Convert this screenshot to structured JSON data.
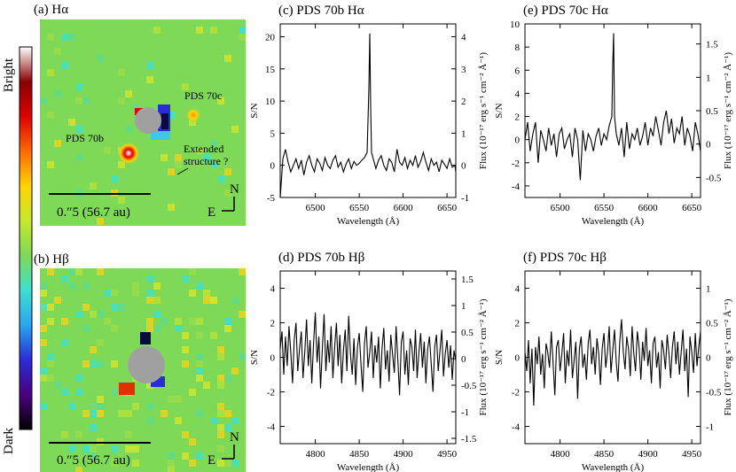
{
  "colorbar": {
    "top_label": "Bright",
    "bottom_label": "Dark",
    "stops": [
      "#000000",
      "#4b0082",
      "#2b2bd8",
      "#2aa6f0",
      "#3de0d0",
      "#7ed957",
      "#c6e82a",
      "#ffd400",
      "#ff6a00",
      "#e00000",
      "#8c0000",
      "#ffffff"
    ]
  },
  "images": [
    {
      "title": "(a) Hα",
      "labels": {
        "p70b": "PDS 70b",
        "p70c": "PDS 70c",
        "ext1": "Extended",
        "ext2": "structure ?"
      },
      "scale": "0.″5 (56.7 au)",
      "n": "N",
      "e": "E",
      "background": "#7ed957"
    },
    {
      "title": "(b) Hβ",
      "labels": {},
      "scale": "0.″5 (56.7 au)",
      "n": "N",
      "e": "E",
      "background": "#7ed957"
    }
  ],
  "chart_data": [
    {
      "type": "line",
      "title": "(c) PDS 70b Hα",
      "xlabel": "Wavelength (Å)",
      "ylabel": "S/N",
      "y2label": "Flux (10⁻¹⁷ erg s⁻¹ cm⁻² Å⁻¹)",
      "xlim": [
        6460,
        6660
      ],
      "ylim": [
        -5,
        22
      ],
      "y2lim": [
        -1,
        4.4
      ],
      "xticks": [
        6500,
        6550,
        6600,
        6650
      ],
      "yticks": [
        -5,
        0,
        5,
        10,
        15,
        20
      ],
      "y2ticks": [
        -1,
        0,
        1,
        2,
        3,
        4
      ],
      "series": [
        {
          "x": [
            6460,
            6463,
            6466,
            6469,
            6472,
            6475,
            6478,
            6481,
            6484,
            6487,
            6490,
            6493,
            6496,
            6499,
            6502,
            6505,
            6508,
            6511,
            6514,
            6517,
            6520,
            6523,
            6526,
            6529,
            6532,
            6535,
            6538,
            6541,
            6544,
            6547,
            6550,
            6553,
            6556,
            6559,
            6561,
            6562,
            6563,
            6564,
            6566,
            6569,
            6572,
            6575,
            6578,
            6581,
            6584,
            6587,
            6590,
            6593,
            6596,
            6599,
            6602,
            6605,
            6608,
            6611,
            6614,
            6617,
            6620,
            6623,
            6626,
            6629,
            6632,
            6635,
            6638,
            6641,
            6644,
            6647,
            6650,
            6653,
            6656,
            6659,
            6660
          ],
          "y": [
            -5,
            1,
            2.5,
            0.5,
            -1,
            0,
            1,
            -0.5,
            0.8,
            -1.5,
            0.5,
            1.5,
            0,
            -1,
            1,
            0.3,
            -0.8,
            1.2,
            0,
            -0.5,
            0.8,
            1.5,
            -0.3,
            0.5,
            -1,
            0.2,
            1,
            -0.5,
            0.6,
            0,
            0.3,
            0.8,
            1.2,
            2,
            12,
            20.5,
            9,
            2,
            1,
            -0.5,
            0.8,
            1.5,
            0,
            -0.8,
            1,
            0.5,
            -1,
            2.5,
            0.5,
            0,
            1.2,
            -0.5,
            0.8,
            0,
            1.5,
            -0.3,
            0.6,
            2,
            0.5,
            -0.8,
            1,
            0,
            0.5,
            -1,
            0.8,
            0.2,
            -0.5,
            1,
            -0.3,
            0,
            -1
          ]
        }
      ]
    },
    {
      "type": "line",
      "title": "(e) PDS 70c Hα",
      "xlabel": "Wavelength (Å)",
      "ylabel": "S/N",
      "y2label": "Flux (10⁻¹⁷ erg s⁻¹ cm⁻² Å⁻¹)",
      "xlim": [
        6460,
        6660
      ],
      "ylim": [
        -5,
        10
      ],
      "y2lim": [
        -0.8,
        1.8
      ],
      "xticks": [
        6500,
        6550,
        6600,
        6650
      ],
      "yticks": [
        -4,
        -2,
        0,
        2,
        4,
        6,
        8,
        10
      ],
      "y2ticks": [
        -0.5,
        0,
        0.5,
        1,
        1.5
      ],
      "series": [
        {
          "x": [
            6460,
            6463,
            6466,
            6469,
            6472,
            6475,
            6478,
            6481,
            6484,
            6487,
            6490,
            6493,
            6496,
            6499,
            6502,
            6505,
            6508,
            6511,
            6514,
            6517,
            6520,
            6523,
            6526,
            6529,
            6532,
            6535,
            6538,
            6541,
            6544,
            6547,
            6550,
            6553,
            6556,
            6559,
            6560,
            6561,
            6562,
            6564,
            6567,
            6570,
            6573,
            6576,
            6579,
            6582,
            6585,
            6588,
            6591,
            6594,
            6597,
            6600,
            6603,
            6606,
            6609,
            6612,
            6615,
            6618,
            6621,
            6624,
            6627,
            6630,
            6633,
            6636,
            6639,
            6642,
            6645,
            6648,
            6651,
            6654,
            6657,
            6660
          ],
          "y": [
            0,
            1.5,
            -1,
            0.5,
            1.5,
            -2,
            0.8,
            0,
            -1,
            1,
            -0.5,
            0.5,
            -1.5,
            0.5,
            1,
            -0.8,
            0,
            0.5,
            -1.5,
            1,
            0,
            -3.5,
            0.8,
            -1,
            0.5,
            0,
            -1,
            0.3,
            1,
            -0.5,
            0.5,
            0,
            1.2,
            2,
            6.5,
            9.2,
            2,
            0.5,
            -0.5,
            1,
            -1.5,
            1.5,
            -0.8,
            0.5,
            0,
            1,
            -0.5,
            0.3,
            1.5,
            -0.5,
            1,
            0.3,
            2,
            0.8,
            -0.5,
            1.5,
            2.5,
            0.5,
            1.8,
            -0.3,
            1,
            0.5,
            2,
            -0.5,
            1,
            0.3,
            -1,
            1.5,
            0.5,
            -1
          ]
        }
      ]
    },
    {
      "type": "line",
      "title": "(d) PDS 70b Hβ",
      "xlabel": "Wavelength (Å)",
      "ylabel": "S/N",
      "y2label": "Flux (10⁻¹⁷ erg s⁻¹ cm⁻² Å⁻¹)",
      "xlim": [
        4760,
        4960
      ],
      "ylim": [
        -5,
        5
      ],
      "y2lim": [
        -1.6,
        1.65
      ],
      "xticks": [
        4800,
        4850,
        4900,
        4950
      ],
      "yticks": [
        -4,
        -2,
        0,
        2,
        4
      ],
      "y2ticks": [
        -1.5,
        -1,
        -0.5,
        0,
        0.5,
        1,
        1.5
      ],
      "series": [
        {
          "x": [
            4760,
            4762,
            4764,
            4766,
            4768,
            4770,
            4772,
            4774,
            4776,
            4778,
            4780,
            4782,
            4784,
            4786,
            4788,
            4790,
            4792,
            4794,
            4796,
            4798,
            4800,
            4802,
            4804,
            4806,
            4808,
            4810,
            4812,
            4814,
            4816,
            4818,
            4820,
            4822,
            4824,
            4826,
            4828,
            4830,
            4832,
            4834,
            4836,
            4838,
            4840,
            4842,
            4844,
            4846,
            4848,
            4850,
            4852,
            4854,
            4856,
            4858,
            4860,
            4862,
            4864,
            4866,
            4868,
            4870,
            4872,
            4874,
            4876,
            4878,
            4880,
            4882,
            4884,
            4886,
            4888,
            4890,
            4892,
            4894,
            4896,
            4898,
            4900,
            4902,
            4904,
            4906,
            4908,
            4910,
            4912,
            4914,
            4916,
            4918,
            4920,
            4922,
            4924,
            4926,
            4928,
            4930,
            4932,
            4934,
            4936,
            4938,
            4940,
            4942,
            4944,
            4946,
            4948,
            4950,
            4952,
            4954,
            4956,
            4958,
            4960
          ],
          "y": [
            0.5,
            1.5,
            -1,
            1.2,
            -0.5,
            1.8,
            0.3,
            -1.5,
            1,
            2,
            -0.8,
            0.5,
            1.5,
            -1.2,
            0.3,
            2.2,
            -0.5,
            1,
            -1.5,
            0.8,
            2.6,
            -0.3,
            1.2,
            -1.8,
            0.5,
            2.5,
            -0.8,
            1,
            -0.3,
            1.8,
            -1.2,
            0.6,
            2,
            -0.5,
            1.3,
            -1.5,
            0.4,
            1.6,
            -0.8,
            2.4,
            0.2,
            -1,
            1.1,
            -1.6,
            0.6,
            1.4,
            -0.4,
            -2,
            0.8,
            1.8,
            -0.6,
            0.3,
            1.5,
            -1.2,
            0.7,
            -0.3,
            1.2,
            -1.8,
            0.5,
            1.7,
            -0.7,
            0.4,
            -1.4,
            1.3,
            0.2,
            -0.9,
            1.8,
            -0.2,
            -2.2,
            0.9,
            1.5,
            -1,
            0.4,
            -1.6,
            1.1,
            0.6,
            -0.8,
            1.6,
            -1.2,
            0.3,
            1.4,
            -0.6,
            0.9,
            -1.5,
            0.5,
            1.2,
            -0.4,
            -2,
            0.6,
            1.3,
            -0.8,
            0.4,
            1.6,
            -1.1,
            0.2,
            1,
            -0.6,
            0.7,
            -1.3,
            0.4,
            -0.2
          ]
        }
      ]
    },
    {
      "type": "line",
      "title": "(f) PDS 70c Hβ",
      "xlabel": "Wavelength (Å)",
      "ylabel": "S/N",
      "y2label": "Flux (10⁻¹⁷ erg s⁻¹ cm⁻² Å⁻¹)",
      "xlim": [
        4760,
        4960
      ],
      "ylim": [
        -5,
        5
      ],
      "y2lim": [
        -1.25,
        1.25
      ],
      "xticks": [
        4800,
        4850,
        4900,
        4950
      ],
      "yticks": [
        -4,
        -2,
        0,
        2,
        4
      ],
      "y2ticks": [
        -1,
        -0.5,
        0,
        0.5,
        1
      ],
      "series": [
        {
          "x": [
            4760,
            4762,
            4764,
            4766,
            4768,
            4770,
            4772,
            4774,
            4776,
            4778,
            4780,
            4782,
            4784,
            4786,
            4788,
            4790,
            4792,
            4794,
            4796,
            4798,
            4800,
            4802,
            4804,
            4806,
            4808,
            4810,
            4812,
            4814,
            4816,
            4818,
            4820,
            4822,
            4824,
            4826,
            4828,
            4830,
            4832,
            4834,
            4836,
            4838,
            4840,
            4842,
            4844,
            4846,
            4848,
            4850,
            4852,
            4854,
            4856,
            4858,
            4860,
            4862,
            4864,
            4866,
            4868,
            4870,
            4872,
            4874,
            4876,
            4878,
            4880,
            4882,
            4884,
            4886,
            4888,
            4890,
            4892,
            4894,
            4896,
            4898,
            4900,
            4902,
            4904,
            4906,
            4908,
            4910,
            4912,
            4914,
            4916,
            4918,
            4920,
            4922,
            4924,
            4926,
            4928,
            4930,
            4932,
            4934,
            4936,
            4938,
            4940,
            4942,
            4944,
            4946,
            4948,
            4950,
            4952,
            4954,
            4956,
            4958,
            4960
          ],
          "y": [
            0.3,
            -0.8,
            1,
            -1.5,
            0.5,
            -2.8,
            0.6,
            -0.4,
            1.2,
            -1,
            0.2,
            -1.8,
            0.8,
            0.3,
            -0.6,
            1.5,
            -0.3,
            -2.2,
            0.6,
            1,
            -0.8,
            0.2,
            1.4,
            -1.5,
            0.4,
            -0.5,
            1.6,
            -1.2,
            -0.2,
            0.9,
            -2.4,
            0.5,
            1.2,
            -0.6,
            0.2,
            -1.3,
            0.8,
            1.6,
            -0.4,
            0.6,
            -1,
            1.1,
            0.2,
            -1.6,
            0.5,
            1.4,
            -0.6,
            0.3,
            1.8,
            -0.9,
            0.4,
            1.6,
            -0.3,
            -1.4,
            0.9,
            2.2,
            0.3,
            -0.7,
            1.2,
            0.5,
            -1.1,
            1.8,
            0.2,
            -0.8,
            1.5,
            0.6,
            -1.3,
            0.9,
            -0.2,
            1.7,
            -0.5,
            0.4,
            -1.5,
            0.8,
            1.2,
            -0.6,
            0.3,
            -1.8,
            1,
            0.4,
            -0.7,
            1.3,
            0.2,
            -1.2,
            0.6,
            1.5,
            -0.4,
            0.9,
            -1,
            0.3,
            1.6,
            -0.8,
            0.5,
            -2.3,
            1.2,
            0.3,
            -0.9,
            1.4,
            -0.5,
            0.6,
            1.5
          ]
        }
      ]
    }
  ]
}
